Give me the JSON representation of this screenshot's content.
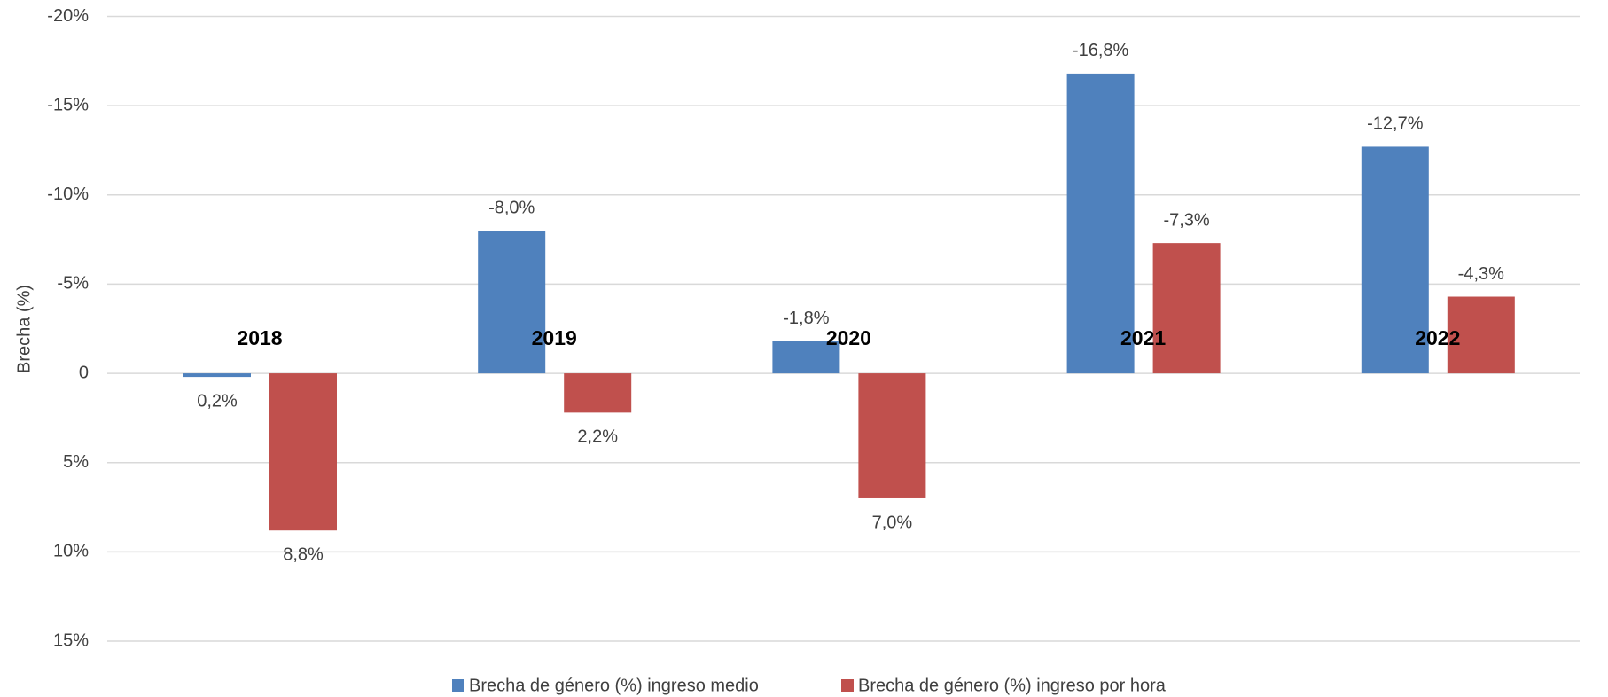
{
  "chart_data": {
    "type": "bar",
    "y_label": "Brecha (%)",
    "categories": [
      "2018",
      "2019",
      "2020",
      "2021",
      "2022"
    ],
    "series": [
      {
        "name": "Brecha de género (%) ingreso medio",
        "color": "#4f81bd",
        "values": [
          0.2,
          -8.0,
          -1.8,
          -16.8,
          -12.7
        ],
        "value_labels": [
          "0,2%",
          "-8,0%",
          "-1,8%",
          "-16,8%",
          "-12,7%"
        ]
      },
      {
        "name": "Brecha de género (%) ingreso por hora",
        "color": "#c0504d",
        "values": [
          8.8,
          2.2,
          7.0,
          -7.3,
          -4.3
        ],
        "value_labels": [
          "8,8%",
          "2,2%",
          "7,0%",
          "-7,3%",
          "-4,3%"
        ]
      }
    ],
    "ylim": [
      -20,
      15
    ],
    "y_inverted": true,
    "yticks": [
      {
        "value": -20,
        "label": "-20%"
      },
      {
        "value": -15,
        "label": "-15%"
      },
      {
        "value": -10,
        "label": "-10%"
      },
      {
        "value": -5,
        "label": "-5%"
      },
      0,
      {
        "value": 5,
        "label": "5%"
      },
      {
        "value": 10,
        "label": "10%"
      },
      {
        "value": 15,
        "label": "15%"
      }
    ],
    "grid": true,
    "legend": "bottom"
  }
}
